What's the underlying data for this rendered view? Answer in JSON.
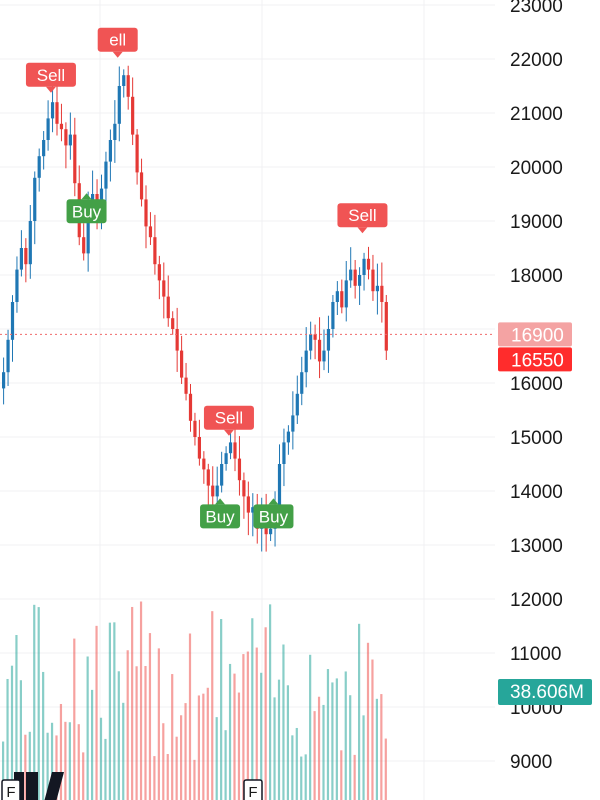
{
  "chart_data": {
    "type": "candlestick",
    "y_axis": {
      "ticks": [
        "23000",
        "22000",
        "21000",
        "20000",
        "19000",
        "18000",
        "17000",
        "16000",
        "15000",
        "14000",
        "13000",
        "12000",
        "11000",
        "10000",
        "9000"
      ],
      "ylim": [
        8600,
        23100
      ]
    },
    "price_badges": [
      {
        "label": "16900",
        "value": 16900,
        "color": "#f4a3a3"
      },
      {
        "label": "16550",
        "value": 16550,
        "color": "#ff2c2c"
      }
    ],
    "volume_badge": {
      "label": "38.606M",
      "color": "#26a69a"
    },
    "signals": [
      {
        "type": "sell",
        "label": "Sell",
        "bar": 11,
        "price": 21300
      },
      {
        "type": "sell",
        "label": "ell",
        "bar": 26,
        "price": 21950
      },
      {
        "type": "buy",
        "label": "Buy",
        "bar": 19,
        "price": 19550
      },
      {
        "type": "sell",
        "label": "Sell",
        "bar": 51,
        "price": 14950
      },
      {
        "type": "buy",
        "label": "Buy",
        "bar": 49,
        "price": 13900
      },
      {
        "type": "buy",
        "label": "Buy",
        "bar": 61,
        "price": 13900
      },
      {
        "type": "sell",
        "label": "Sell",
        "bar": 81,
        "price": 18700
      }
    ],
    "colors": {
      "up": "#1f77b4",
      "down": "#e53935",
      "vol_up": "#26a69a",
      "vol_down": "#ef5350",
      "buy": "#43a047",
      "sell": "#f05454"
    },
    "grid": true,
    "price_line_value": 16900,
    "closes": [
      16200,
      16800,
      17500,
      18100,
      18500,
      18200,
      19000,
      19800,
      20200,
      20500,
      20900,
      21200,
      20800,
      20700,
      20400,
      20600,
      19700,
      18700,
      18400,
      19300,
      19500,
      19100,
      19600,
      20100,
      20500,
      20800,
      21500,
      21700,
      21300,
      20600,
      19900,
      19400,
      18900,
      18700,
      18200,
      17900,
      17600,
      17200,
      17000,
      16600,
      16100,
      15800,
      15300,
      15000,
      14600,
      14400,
      14100,
      13900,
      14100,
      14500,
      14700,
      14900,
      14600,
      14200,
      13900,
      13600,
      13700,
      13300,
      13500,
      13200,
      13300,
      13700,
      14500,
      14900,
      15100,
      15400,
      15800,
      16200,
      16600,
      16900,
      16800,
      16400,
      16600,
      17000,
      17500,
      17700,
      17400,
      17900,
      18100,
      17800,
      18000,
      18300,
      18100,
      17700,
      17800,
      17500,
      16600
    ]
  },
  "logo": {
    "text": "TV"
  },
  "time_markers": [
    "F",
    "F"
  ]
}
